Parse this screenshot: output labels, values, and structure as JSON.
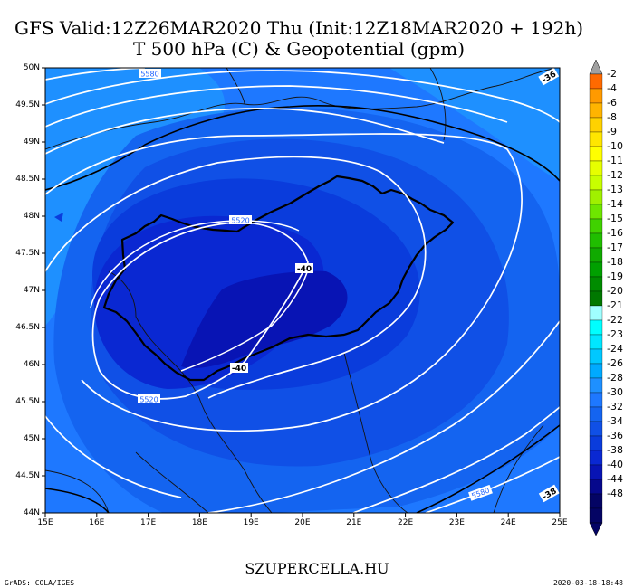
{
  "title": {
    "line1": "GFS Valid:12Z26MAR2020 Thu (Init:12Z18MAR2020 + 192h)",
    "line2": "T 500 hPa (C) & Geopotential (gpm)"
  },
  "axes": {
    "lat_labels": [
      "50N",
      "49.5N",
      "49N",
      "48.5N",
      "48N",
      "47.5N",
      "47N",
      "46.5N",
      "46N",
      "45.5N",
      "45N",
      "44.5N",
      "44N"
    ],
    "lon_labels": [
      "15E",
      "16E",
      "17E",
      "18E",
      "19E",
      "20E",
      "21E",
      "22E",
      "23E",
      "24E",
      "25E"
    ]
  },
  "contour_labels": {
    "geopotential": [
      "5580",
      "5520",
      "5520",
      "5580",
      "5580"
    ],
    "temperature": [
      "-40",
      "-40",
      "-36",
      "-38"
    ]
  },
  "legend": {
    "labels": [
      "-2",
      "-4",
      "-6",
      "-8",
      "-9",
      "-10",
      "-11",
      "-12",
      "-13",
      "-14",
      "-15",
      "-16",
      "-17",
      "-18",
      "-19",
      "-20",
      "-21",
      "-22",
      "-23",
      "-24",
      "-26",
      "-28",
      "-30",
      "-32",
      "-34",
      "-36",
      "-38",
      "-40",
      "-44",
      "-48"
    ],
    "colors": [
      "#ff6a00",
      "#ff9a00",
      "#ffb400",
      "#ffd200",
      "#ffe600",
      "#ffff00",
      "#e6ff00",
      "#c8ff00",
      "#a0f000",
      "#6ee600",
      "#40d200",
      "#20be00",
      "#10aa00",
      "#00a000",
      "#008c00",
      "#007800",
      "#a0ffff",
      "#00ffff",
      "#00e6ff",
      "#00c8ff",
      "#00aaff",
      "#1e90ff",
      "#1e78ff",
      "#1464f0",
      "#1050e6",
      "#0a3cdc",
      "#0a28d2",
      "#0814b4",
      "#06088c",
      "#040464"
    ]
  },
  "footer": {
    "site": "SZUPERCELLA.HU",
    "credit": "GrADS: COLA/IGES",
    "timestamp": "2020-03-18-18:48"
  }
}
